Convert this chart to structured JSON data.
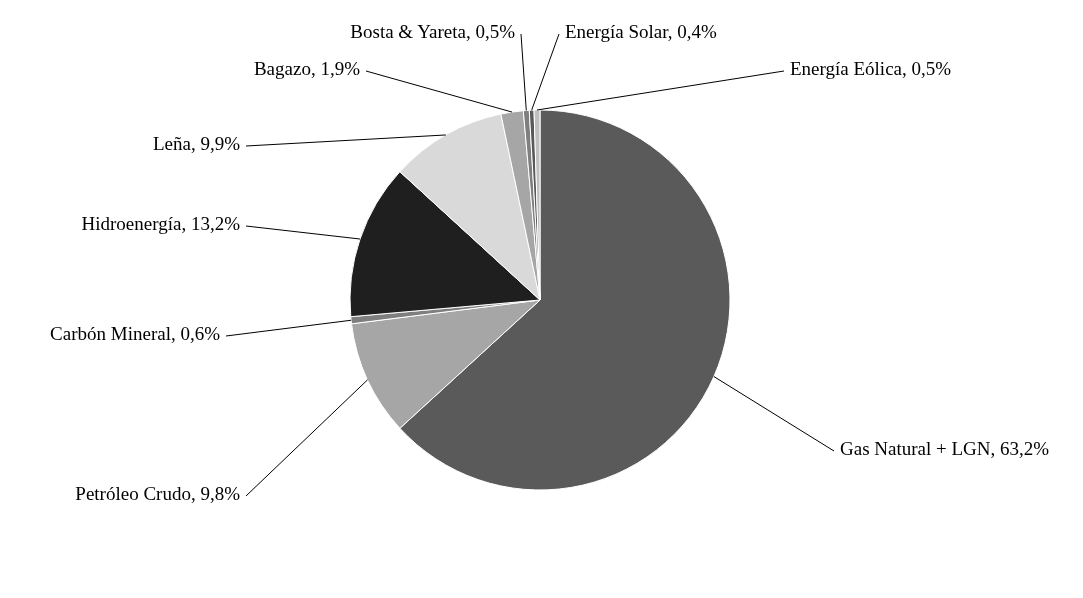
{
  "chart_data": {
    "type": "pie",
    "categories": [
      "Gas Natural + LGN",
      "Petróleo Crudo",
      "Carbón Mineral",
      "Hidroenergía",
      "Leña",
      "Bagazo",
      "Bosta & Yareta",
      "Energía Solar",
      "Energía Eólica"
    ],
    "values": [
      63.2,
      9.8,
      0.6,
      13.2,
      9.9,
      1.9,
      0.5,
      0.4,
      0.5
    ],
    "value_labels": [
      "63,2%",
      "9,8%",
      "0,6%",
      "13,2%",
      "9,9%",
      "1,9%",
      "0,5%",
      "0,4%",
      "0,5%"
    ],
    "colors": [
      "#5a5a5a",
      "#a6a6a6",
      "#7f7f7f",
      "#1f1f1f",
      "#d9d9d9",
      "#a6a6a6",
      "#7f7f7f",
      "#595959",
      "#bfbfbf"
    ]
  }
}
